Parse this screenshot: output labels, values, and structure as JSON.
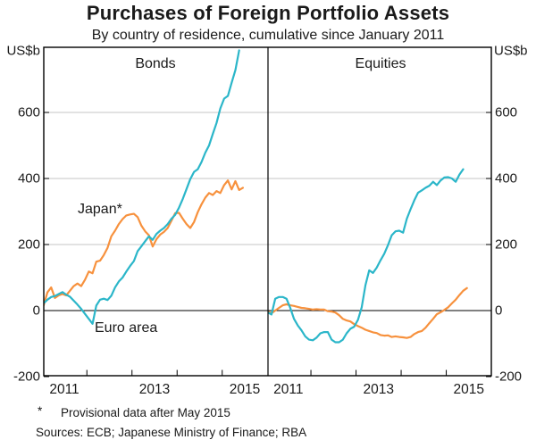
{
  "title": "Purchases of Foreign Portfolio Assets",
  "subtitle": "By country of residence, cumulative since January 2011",
  "unit_label": "US$b",
  "footnote_marker": "*",
  "footnote_text": "Provisional data after May 2015",
  "sources_text": "Sources:  ECB; Japanese Ministry of Finance; RBA",
  "colors": {
    "japan": "#F7913D",
    "euro_area": "#2BB6C9",
    "grid": "#C6C6C6",
    "axis": "#000000"
  },
  "series_labels": {
    "japan": "Japan*",
    "euro_area": "Euro area"
  },
  "y_axis": {
    "ticks": [
      600,
      400,
      200,
      0,
      -200
    ],
    "min": -200,
    "max": 800,
    "grid_ticks": [
      600,
      400,
      200
    ],
    "zero_line": 0
  },
  "x_axis": {
    "year_labels": [
      "2011",
      "2013",
      "2015"
    ],
    "label_years": [
      2011,
      2013,
      2015
    ],
    "boundary_tick_years": [
      2012,
      2013,
      2014,
      2015
    ]
  },
  "chart_data": [
    {
      "type": "line",
      "panel": "Bonds",
      "frequency": "monthly",
      "start": "2011-01",
      "series": [
        {
          "name": "Japan",
          "color_key": "japan",
          "end": "2015-06",
          "values": [
            16,
            55,
            70,
            38,
            46,
            50,
            46,
            60,
            74,
            82,
            74,
            93,
            118,
            113,
            148,
            151,
            168,
            190,
            225,
            242,
            262,
            277,
            288,
            291,
            293,
            283,
            257,
            240,
            228,
            194,
            216,
            230,
            238,
            250,
            272,
            295,
            296,
            278,
            262,
            250,
            268,
            298,
            322,
            342,
            356,
            350,
            362,
            356,
            380,
            394,
            367,
            392,
            365,
            372
          ]
        },
        {
          "name": "Euro area",
          "color_key": "euro_area",
          "end": "2015-05",
          "values": [
            22,
            33,
            41,
            44,
            50,
            56,
            48,
            42,
            30,
            18,
            5,
            -10,
            -25,
            -40,
            15,
            33,
            36,
            32,
            45,
            70,
            88,
            100,
            118,
            135,
            150,
            180,
            195,
            210,
            225,
            214,
            232,
            242,
            250,
            262,
            278,
            290,
            312,
            338,
            368,
            398,
            420,
            428,
            450,
            478,
            500,
            535,
            568,
            612,
            642,
            650,
            690,
            728,
            788
          ]
        }
      ]
    },
    {
      "type": "line",
      "panel": "Equities",
      "frequency": "monthly",
      "start": "2011-01",
      "series": [
        {
          "name": "Japan",
          "color_key": "japan",
          "end": "2015-06",
          "values": [
            -3,
            -8,
            0,
            8,
            16,
            19,
            16,
            14,
            11,
            8,
            7,
            5,
            3,
            4,
            3,
            3,
            -2,
            -3,
            -6,
            -14,
            -25,
            -30,
            -33,
            -41,
            -47,
            -52,
            -58,
            -62,
            -66,
            -68,
            -74,
            -76,
            -75,
            -80,
            -78,
            -80,
            -81,
            -83,
            -80,
            -71,
            -65,
            -62,
            -52,
            -38,
            -25,
            -11,
            -5,
            2,
            10,
            22,
            33,
            47,
            60,
            68
          ]
        },
        {
          "name": "Euro area",
          "color_key": "euro_area",
          "end": "2015-05",
          "values": [
            -5,
            -12,
            36,
            41,
            41,
            36,
            8,
            -25,
            -45,
            -60,
            -78,
            -88,
            -90,
            -82,
            -69,
            -65,
            -65,
            -88,
            -96,
            -96,
            -88,
            -69,
            -55,
            -49,
            -28,
            10,
            77,
            122,
            114,
            130,
            152,
            172,
            198,
            228,
            240,
            242,
            236,
            278,
            307,
            334,
            357,
            364,
            372,
            378,
            390,
            380,
            394,
            403,
            404,
            400,
            390,
            412,
            428
          ]
        }
      ]
    }
  ]
}
